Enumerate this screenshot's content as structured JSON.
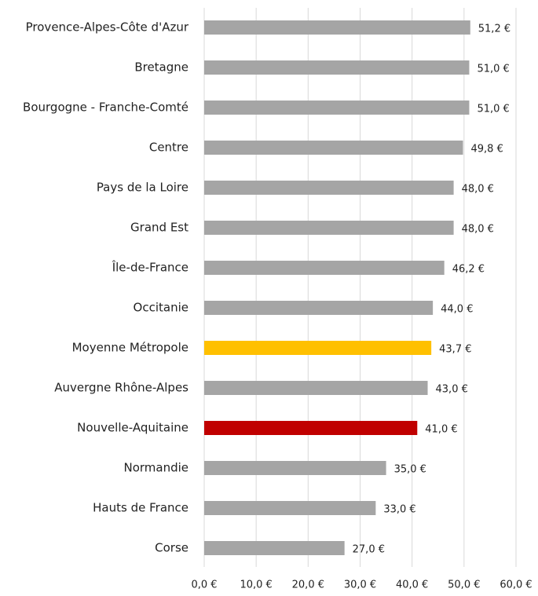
{
  "chart_data": {
    "type": "hbar",
    "categories": [
      "Provence-Alpes-Côte d'Azur",
      "Bretagne",
      "Bourgogne - Franche-Comté",
      "Centre",
      "Pays de la Loire",
      "Grand Est",
      "Île-de-France",
      "Occitanie",
      "Moyenne Métropole",
      "Auvergne Rhône-Alpes",
      "Nouvelle-Aquitaine",
      "Normandie",
      "Hauts de France",
      "Corse"
    ],
    "values": [
      51.2,
      51.0,
      51.0,
      49.8,
      48.0,
      48.0,
      46.2,
      44.0,
      43.7,
      43.0,
      41.0,
      35.0,
      33.0,
      27.0
    ],
    "value_labels": [
      "51,2 €",
      "51,0 €",
      "51,0 €",
      "49,8 €",
      "48,0 €",
      "48,0 €",
      "46,2 €",
      "44,0 €",
      "43,7 €",
      "43,0 €",
      "41,0 €",
      "35,0 €",
      "33,0 €",
      "27,0 €"
    ],
    "colors": [
      "#a5a5a5",
      "#a5a5a5",
      "#a5a5a5",
      "#a5a5a5",
      "#a5a5a5",
      "#a5a5a5",
      "#a5a5a5",
      "#a5a5a5",
      "#ffc000",
      "#a5a5a5",
      "#c00000",
      "#a5a5a5",
      "#a5a5a5",
      "#a5a5a5"
    ],
    "xlim": [
      0,
      60
    ],
    "xticks": [
      {
        "value": 0,
        "label": "0,0 €"
      },
      {
        "value": 10,
        "label": "10,0 €"
      },
      {
        "value": 20,
        "label": "20,0 €"
      },
      {
        "value": 30,
        "label": "30,0 €"
      },
      {
        "value": 40,
        "label": "40,0 €"
      },
      {
        "value": 50,
        "label": "50,0 €"
      },
      {
        "value": 60,
        "label": "60,0 €"
      }
    ],
    "grid": true
  }
}
